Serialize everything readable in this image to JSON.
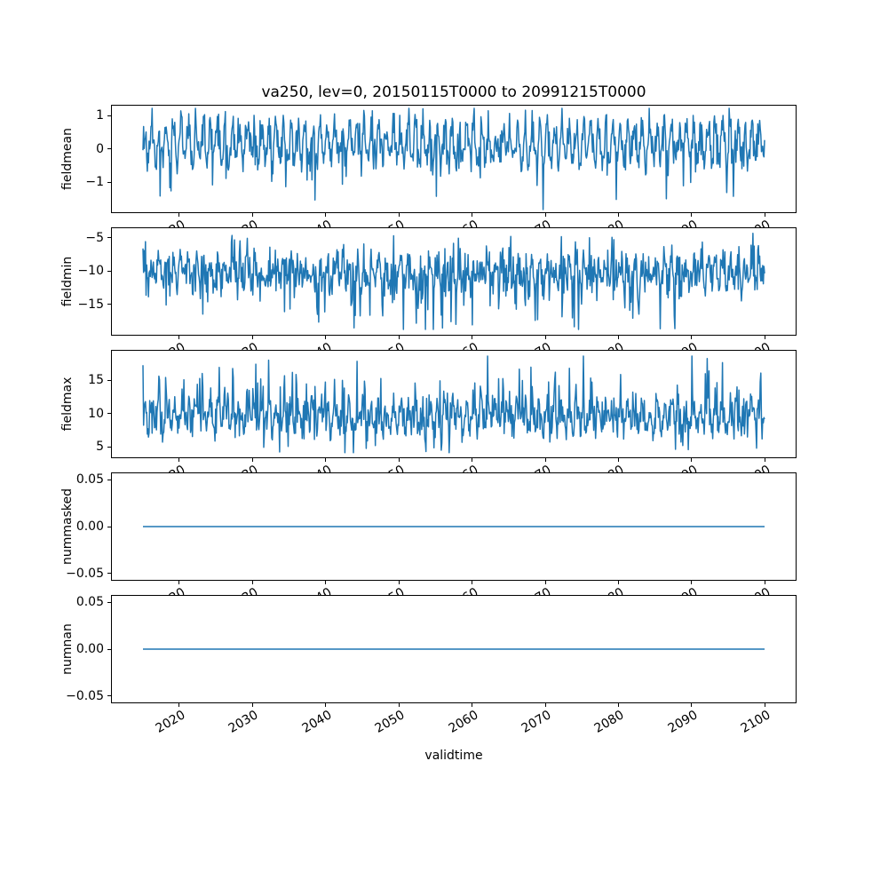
{
  "chart_data": {
    "type": "line",
    "title": "va250, lev=0, 20150115T0000 to 20991215T0000",
    "xlabel": "validtime",
    "x_start": 2015.042,
    "x_end": 2099.958,
    "n_points": 1020,
    "xlim": [
      2010.79,
      2104.21
    ],
    "xticks": [
      2020,
      2030,
      2040,
      2050,
      2060,
      2070,
      2080,
      2090,
      2100
    ],
    "xtick_labels": [
      "2020",
      "2030",
      "2040",
      "2050",
      "2060",
      "2070",
      "2080",
      "2090",
      "2100"
    ],
    "line_color": "#1f77b4",
    "grid": false,
    "legend": "none",
    "panels": [
      {
        "ylabel": "fieldmean",
        "ytick_values": [
          1,
          0,
          -1
        ],
        "ytick_labels": [
          "1",
          "0",
          "−1"
        ],
        "ylim": [
          -1.9,
          1.3
        ],
        "series": {
          "kind": "noisy",
          "center": 0.15,
          "seasonal": 0.5,
          "sigma": 0.28,
          "spike_prob": 0.04,
          "spike_scale": -0.55,
          "clip": [
            -1.82,
            1.22
          ],
          "seed": 11,
          "approx_mean": 0.1,
          "approx_range": [
            -1.8,
            1.2
          ]
        }
      },
      {
        "ylabel": "fieldmin",
        "ytick_values": [
          -5,
          -10,
          -15
        ],
        "ytick_labels": [
          "−5",
          "−10",
          "−15"
        ],
        "ylim": [
          -19.6,
          -3.6
        ],
        "series": {
          "kind": "noisy",
          "center": -10.2,
          "seasonal": 1.5,
          "sigma": 1.6,
          "spike_prob": 0.07,
          "spike_scale": -2.3,
          "clip": [
            -18.8,
            -4.3
          ],
          "seed": 23,
          "approx_mean": -10,
          "approx_range": [
            -18.8,
            -4.3
          ]
        }
      },
      {
        "ylabel": "fieldmax",
        "ytick_values": [
          15,
          10,
          5
        ],
        "ytick_labels": [
          "15",
          "10",
          "5"
        ],
        "ylim": [
          3.4,
          19.4
        ],
        "series": {
          "kind": "noisy",
          "center": 9.6,
          "seasonal": 1.5,
          "sigma": 1.6,
          "spike_prob": 0.07,
          "spike_scale": 2.3,
          "clip": [
            4.1,
            18.6
          ],
          "seed": 37,
          "approx_mean": 9.6,
          "approx_range": [
            4.1,
            18.6
          ]
        }
      },
      {
        "ylabel": "nummasked",
        "ytick_values": [
          0.05,
          0.0,
          -0.05
        ],
        "ytick_labels": [
          "0.05",
          "0.00",
          "−0.05"
        ],
        "ylim": [
          -0.057,
          0.057
        ],
        "series": {
          "kind": "constant",
          "value": 0.0,
          "approx_mean": 0.0,
          "approx_range": [
            0.0,
            0.0
          ]
        }
      },
      {
        "ylabel": "numnan",
        "ytick_values": [
          0.05,
          0.0,
          -0.05
        ],
        "ytick_labels": [
          "0.05",
          "0.00",
          "−0.05"
        ],
        "ylim": [
          -0.057,
          0.057
        ],
        "series": {
          "kind": "constant",
          "value": 0.0,
          "approx_mean": 0.0,
          "approx_range": [
            0.0,
            0.0
          ]
        }
      }
    ]
  }
}
